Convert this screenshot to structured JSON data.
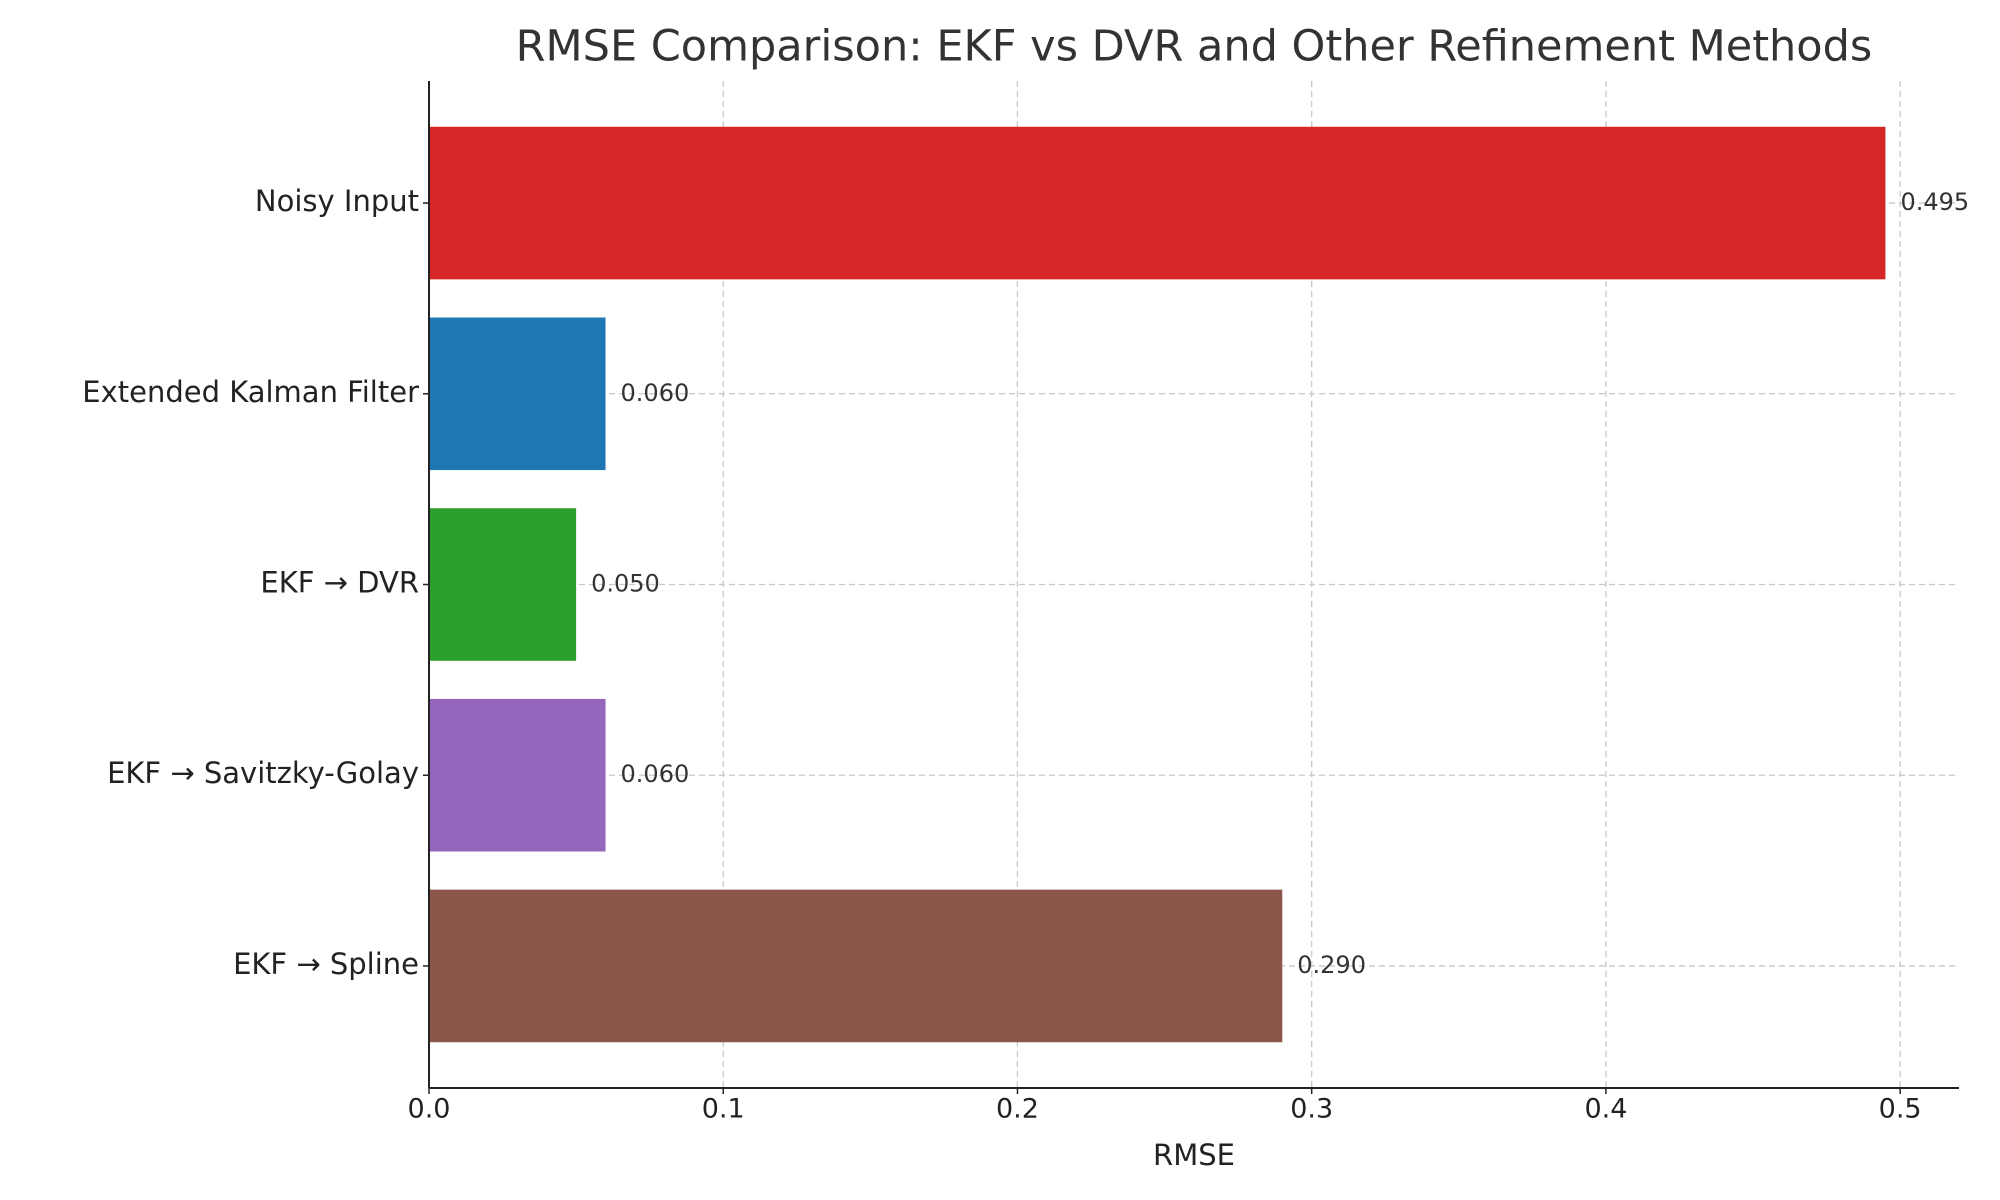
{
  "chart_data": {
    "type": "barh",
    "title": "RMSE Comparison: EKF vs DVR and Other Refinement Methods",
    "x_label": "RMSE",
    "categories": [
      "Noisy Input",
      "Extended Kalman Filter",
      "EKF → DVR",
      "EKF → Savitzky-Golay",
      "EKF → Spline"
    ],
    "values": [
      0.495,
      0.06,
      0.05,
      0.06,
      0.29
    ],
    "value_labels": [
      "0.495",
      "0.060",
      "0.050",
      "0.060",
      "0.290"
    ],
    "colors": [
      "#d62728",
      "#1f77b4",
      "#2ca02c",
      "#9467bd",
      "#8c564b"
    ],
    "xlim": [
      0,
      0.52
    ],
    "xticks": [
      {
        "value": 0,
        "label": "0.0"
      },
      0.1,
      0.2,
      0.3,
      0.4,
      0.5
    ],
    "grid": true
  }
}
